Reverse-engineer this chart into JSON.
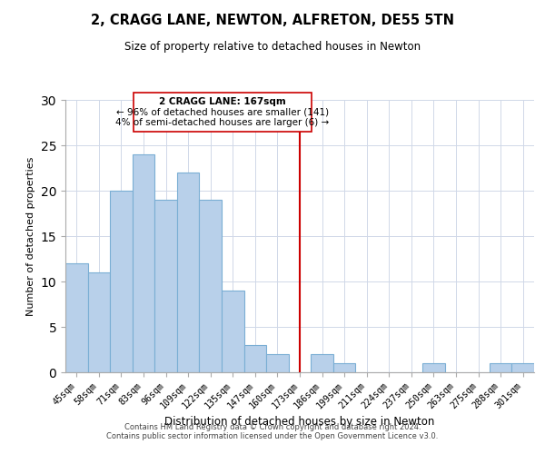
{
  "title": "2, CRAGG LANE, NEWTON, ALFRETON, DE55 5TN",
  "subtitle": "Size of property relative to detached houses in Newton",
  "xlabel": "Distribution of detached houses by size in Newton",
  "ylabel": "Number of detached properties",
  "bin_labels": [
    "45sqm",
    "58sqm",
    "71sqm",
    "83sqm",
    "96sqm",
    "109sqm",
    "122sqm",
    "135sqm",
    "147sqm",
    "160sqm",
    "173sqm",
    "186sqm",
    "199sqm",
    "211sqm",
    "224sqm",
    "237sqm",
    "250sqm",
    "263sqm",
    "275sqm",
    "288sqm",
    "301sqm"
  ],
  "bar_heights": [
    12,
    11,
    20,
    24,
    19,
    22,
    19,
    9,
    3,
    2,
    0,
    2,
    1,
    0,
    0,
    0,
    1,
    0,
    0,
    1,
    1
  ],
  "bar_color": "#b8d0ea",
  "bar_edge_color": "#7aaed4",
  "vline_color": "#cc0000",
  "annotation_text_line1": "2 CRAGG LANE: 167sqm",
  "annotation_text_line2": "← 96% of detached houses are smaller (141)",
  "annotation_text_line3": "4% of semi-detached houses are larger (6) →",
  "box_edge_color": "#cc0000",
  "ylim": [
    0,
    30
  ],
  "yticks": [
    0,
    5,
    10,
    15,
    20,
    25,
    30
  ],
  "footer_line1": "Contains HM Land Registry data © Crown copyright and database right 2024.",
  "footer_line2": "Contains public sector information licensed under the Open Government Licence v3.0."
}
